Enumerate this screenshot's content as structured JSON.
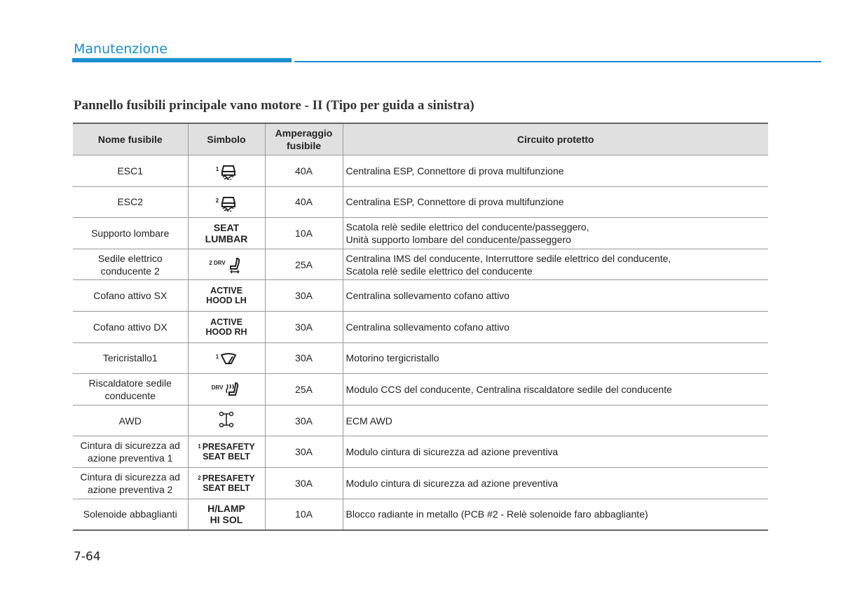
{
  "header": {
    "section": "Manutenzione"
  },
  "title": "Pannello fusibili principale vano motore - II (Tipo per guida a sinistra)",
  "table": {
    "columns": [
      "Nome fusibile",
      "Simbolo",
      [
        "Amperaggio",
        "fusibile"
      ],
      "Circuito protetto"
    ],
    "rows": [
      {
        "name": [
          "ESC1"
        ],
        "symbol": {
          "sup": "1"
        },
        "amp": "40A",
        "circuit": [
          "Centralina ESP, Connettore di prova multifunzione"
        ]
      },
      {
        "name": [
          "ESC2"
        ],
        "symbol": {
          "sup": "2"
        },
        "amp": "40A",
        "circuit": [
          "Centralina ESP, Connettore di prova multifunzione"
        ]
      },
      {
        "name": [
          "Supporto lombare"
        ],
        "symbol": {
          "lines": [
            "SEAT",
            "LUMBAR"
          ]
        },
        "amp": "10A",
        "circuit": [
          "Scatola relè sedile elettrico del conducente/passeggero,",
          "Unità supporto lombare del conducente/passeggero"
        ]
      },
      {
        "name": [
          "Sedile elettrico",
          "conducente 2"
        ],
        "symbol": {
          "sup": "2 DRV"
        },
        "amp": "25A",
        "circuit": [
          "Centralina IMS del conducente, Interruttore sedile elettrico del conducente,",
          "Scatola relè sedile elettrico del conducente"
        ]
      },
      {
        "name": [
          "Cofano attivo SX"
        ],
        "symbol": {
          "lines": [
            "ACTIVE",
            "HOOD LH"
          ]
        },
        "amp": "30A",
        "circuit": [
          "Centralina sollevamento cofano attivo"
        ]
      },
      {
        "name": [
          "Cofano attivo DX"
        ],
        "symbol": {
          "lines": [
            "ACTIVE",
            "HOOD RH"
          ]
        },
        "amp": "30A",
        "circuit": [
          "Centralina sollevamento cofano attivo"
        ]
      },
      {
        "name": [
          "Tericristallo1"
        ],
        "symbol": {
          "sup": "1"
        },
        "amp": "30A",
        "circuit": [
          "Motorino tergicristallo"
        ]
      },
      {
        "name": [
          "Riscaldatore sedile",
          "conducente"
        ],
        "symbol": {
          "sup": "DRV"
        },
        "amp": "25A",
        "circuit": [
          "Modulo CCS del conducente, Centralina riscaldatore sedile del conducente"
        ]
      },
      {
        "name": [
          "AWD"
        ],
        "symbol": {},
        "amp": "30A",
        "circuit": [
          "ECM AWD"
        ]
      },
      {
        "name": [
          "Cintura di sicurezza ad",
          "azione preventiva 1"
        ],
        "symbol": {
          "sup": "1",
          "lines": [
            "PRESAFETY",
            "SEAT BELT"
          ]
        },
        "amp": "30A",
        "circuit": [
          "Modulo cintura di sicurezza ad azione preventiva"
        ]
      },
      {
        "name": [
          "Cintura di sicurezza ad",
          "azione preventiva 2"
        ],
        "symbol": {
          "sup": "2",
          "lines": [
            "PRESAFETY",
            "SEAT BELT"
          ]
        },
        "amp": "30A",
        "circuit": [
          "Modulo cintura di sicurezza ad azione preventiva"
        ]
      },
      {
        "name": [
          "Solenoide abbaglianti"
        ],
        "symbol": {
          "lines": [
            "H/LAMP",
            "HI SOL"
          ]
        },
        "amp": "10A",
        "circuit": [
          "Blocco radiante in metallo (PCB #2 - Relè solenoide faro abbagliante)"
        ]
      }
    ]
  },
  "page_number": "7-64"
}
